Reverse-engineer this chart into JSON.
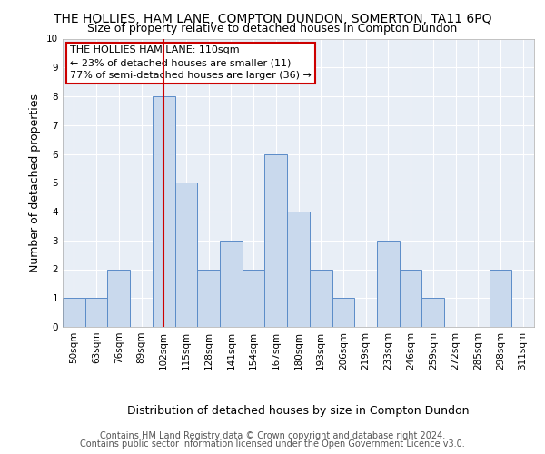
{
  "title": "THE HOLLIES, HAM LANE, COMPTON DUNDON, SOMERTON, TA11 6PQ",
  "subtitle": "Size of property relative to detached houses in Compton Dundon",
  "xlabel": "Distribution of detached houses by size in Compton Dundon",
  "ylabel": "Number of detached properties",
  "categories": [
    "50sqm",
    "63sqm",
    "76sqm",
    "89sqm",
    "102sqm",
    "115sqm",
    "128sqm",
    "141sqm",
    "154sqm",
    "167sqm",
    "180sqm",
    "193sqm",
    "206sqm",
    "219sqm",
    "233sqm",
    "246sqm",
    "259sqm",
    "272sqm",
    "285sqm",
    "298sqm",
    "311sqm"
  ],
  "values": [
    1,
    1,
    2,
    0,
    8,
    5,
    2,
    3,
    2,
    6,
    4,
    2,
    1,
    0,
    3,
    2,
    1,
    0,
    0,
    2,
    0
  ],
  "bar_color": "#c9d9ed",
  "bar_edgecolor": "#5b8cc8",
  "highlight_index": 4,
  "highlight_line_color": "#cc0000",
  "ylim": [
    0,
    10
  ],
  "yticks": [
    0,
    1,
    2,
    3,
    4,
    5,
    6,
    7,
    8,
    9,
    10
  ],
  "annotation_title": "THE HOLLIES HAM LANE: 110sqm",
  "annotation_line1": "← 23% of detached houses are smaller (11)",
  "annotation_line2": "77% of semi-detached houses are larger (36) →",
  "annotation_box_color": "#ffffff",
  "annotation_box_edgecolor": "#cc0000",
  "footer_line1": "Contains HM Land Registry data © Crown copyright and database right 2024.",
  "footer_line2": "Contains public sector information licensed under the Open Government Licence v3.0.",
  "background_color": "#e8eef6",
  "grid_color": "#ffffff",
  "title_fontsize": 10,
  "subtitle_fontsize": 9,
  "axis_label_fontsize": 9,
  "tick_fontsize": 7.5,
  "footer_fontsize": 7,
  "annotation_fontsize": 8
}
